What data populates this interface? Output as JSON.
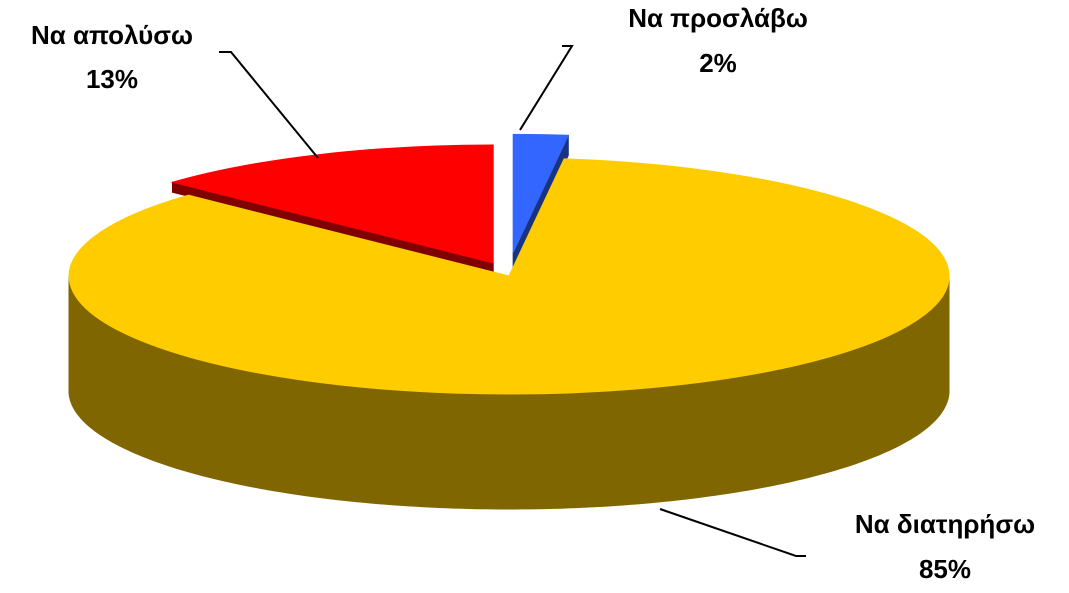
{
  "chart_data": {
    "type": "pie",
    "style": "3d-exploded",
    "slices": [
      {
        "label": "Να προσλάβω",
        "value": 2,
        "value_label": "2%",
        "color": "#3366ff",
        "side_color": "#1a3380"
      },
      {
        "label": "Να διατηρήσω",
        "value": 85,
        "value_label": "85%",
        "color": "#ffcc00",
        "side_color": "#806600"
      },
      {
        "label": "Να απολύσω",
        "value": 13,
        "value_label": "13%",
        "color": "#ff0000",
        "side_color": "#800000"
      }
    ],
    "legend": "none",
    "data_labels": "outside-with-leader-lines"
  }
}
